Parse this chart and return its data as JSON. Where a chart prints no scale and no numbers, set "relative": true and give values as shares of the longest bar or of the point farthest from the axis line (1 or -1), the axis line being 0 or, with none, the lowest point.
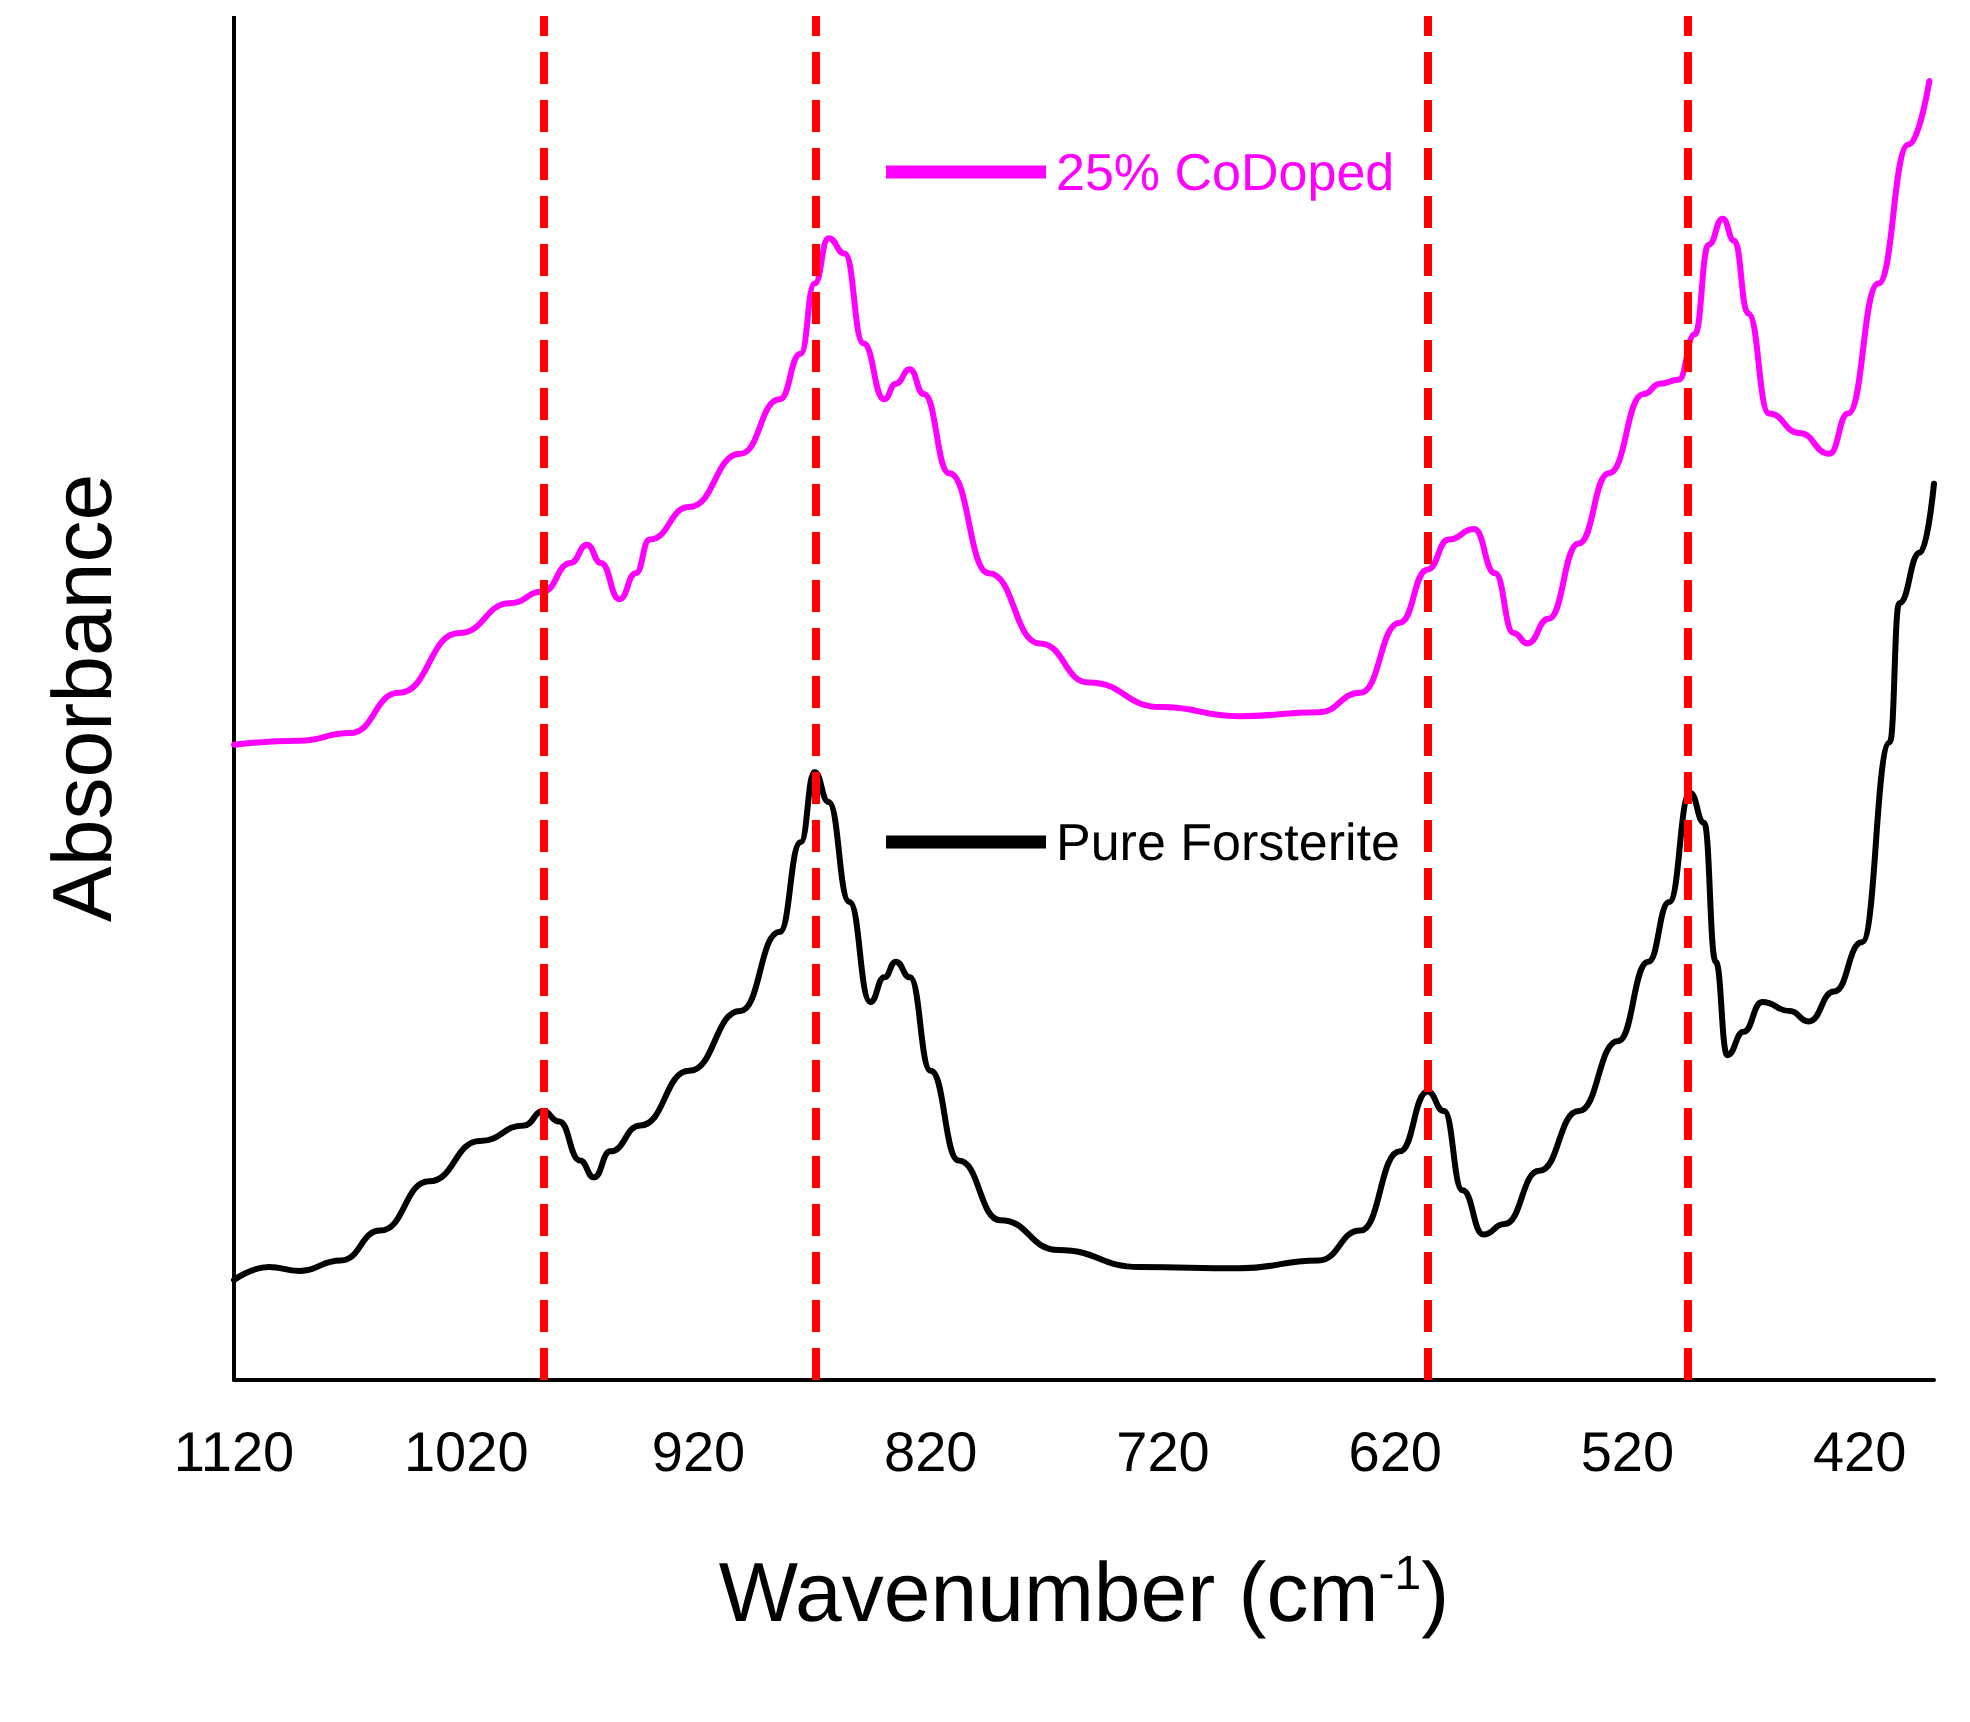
{
  "chart_data": {
    "type": "line",
    "relative": true,
    "xlabel": "Wavenumber (cm$^{-1}$)",
    "ylabel": "Absorbance",
    "xlim": [
      1120,
      388
    ],
    "xticks": [
      1120,
      1020,
      920,
      820,
      720,
      620,
      520,
      420
    ],
    "legend": "top right",
    "tick_labels": "x",
    "grid": false,
    "marker": "none",
    "line_style": "solid",
    "series": [
      {
        "name": "25% CoDoped",
        "color": "#ff00ff",
        "x": [
          1120,
          1092,
          1070,
          1049,
          1023,
          1001,
          987,
          975,
          968,
          962,
          954,
          947,
          941,
          924,
          902,
          885,
          876,
          870,
          864,
          857,
          849,
          840,
          835,
          829,
          823,
          812,
          795,
          773,
          752,
          721,
          687,
          653,
          635,
          618,
          606,
          597,
          586,
          577,
          569,
          563,
          554,
          541,
          528,
          513,
          506,
          498,
          491,
          485,
          479,
          474,
          468,
          459,
          446,
          433,
          425,
          412,
          399,
          390
        ],
        "values": [
          0.489,
          0.492,
          0.498,
          0.529,
          0.575,
          0.598,
          0.607,
          0.629,
          0.643,
          0.629,
          0.601,
          0.621,
          0.647,
          0.672,
          0.713,
          0.755,
          0.79,
          0.844,
          0.879,
          0.867,
          0.798,
          0.755,
          0.767,
          0.778,
          0.759,
          0.698,
          0.621,
          0.567,
          0.537,
          0.518,
          0.511,
          0.514,
          0.529,
          0.583,
          0.624,
          0.647,
          0.655,
          0.621,
          0.575,
          0.567,
          0.586,
          0.644,
          0.698,
          0.759,
          0.767,
          0.77,
          0.805,
          0.874,
          0.894,
          0.877,
          0.821,
          0.744,
          0.729,
          0.713,
          0.744,
          0.844,
          0.951,
          1
        ]
      },
      {
        "name": "Pure Forsterite",
        "color": "#000000",
        "x": [
          1120,
          1105,
          1092,
          1074,
          1057,
          1036,
          1014,
          995,
          987,
          980,
          971,
          965,
          958,
          945,
          924,
          902,
          885,
          876,
          870,
          864,
          855,
          846,
          840,
          835,
          829,
          820,
          808,
          790,
          765,
          730,
          687,
          653,
          635,
          618,
          606,
          599,
          591,
          582,
          573,
          558,
          541,
          524,
          511,
          502,
          493,
          487,
          482,
          477,
          470,
          462,
          450,
          442,
          431,
          419,
          407,
          403,
          394,
          388
        ],
        "values": [
          0.077,
          0.087,
          0.084,
          0.092,
          0.115,
          0.153,
          0.184,
          0.196,
          0.207,
          0.199,
          0.169,
          0.156,
          0.176,
          0.196,
          0.238,
          0.284,
          0.345,
          0.414,
          0.468,
          0.445,
          0.368,
          0.291,
          0.31,
          0.322,
          0.31,
          0.238,
          0.169,
          0.123,
          0.1,
          0.087,
          0.086,
          0.092,
          0.115,
          0.176,
          0.222,
          0.207,
          0.146,
          0.112,
          0.12,
          0.161,
          0.207,
          0.261,
          0.322,
          0.368,
          0.452,
          0.429,
          0.322,
          0.25,
          0.268,
          0.291,
          0.284,
          0.276,
          0.299,
          0.337,
          0.491,
          0.598,
          0.637,
          0.69
        ]
      }
    ],
    "ref_lines": [
      {
        "axis": "x",
        "value": 987,
        "color": "#ff0000",
        "line_style": "dashed"
      },
      {
        "axis": "x",
        "value": 870,
        "color": "#ff0000",
        "line_style": "dashed"
      },
      {
        "axis": "x",
        "value": 606,
        "color": "#ff0000",
        "line_style": "dashed"
      },
      {
        "axis": "x",
        "value": 494,
        "color": "#ff0000",
        "line_style": "dashed"
      }
    ]
  }
}
